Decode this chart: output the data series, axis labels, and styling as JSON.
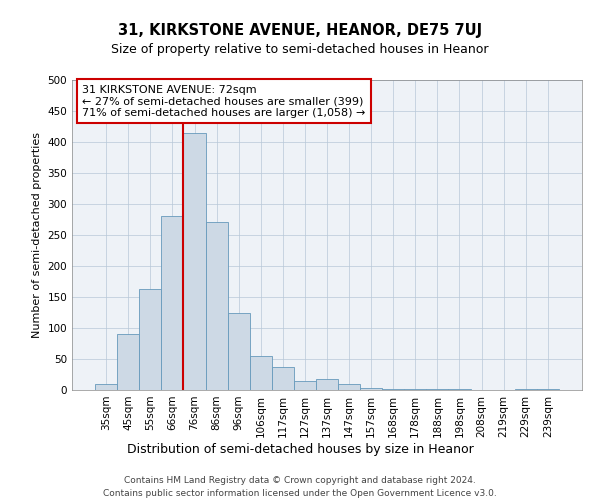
{
  "title": "31, KIRKSTONE AVENUE, HEANOR, DE75 7UJ",
  "subtitle": "Size of property relative to semi-detached houses in Heanor",
  "xlabel": "Distribution of semi-detached houses by size in Heanor",
  "ylabel": "Number of semi-detached properties",
  "footer_line1": "Contains HM Land Registry data © Crown copyright and database right 2024.",
  "footer_line2": "Contains public sector information licensed under the Open Government Licence v3.0.",
  "annotation_line1": "31 KIRKSTONE AVENUE: 72sqm",
  "annotation_line2": "← 27% of semi-detached houses are smaller (399)",
  "annotation_line3": "71% of semi-detached houses are larger (1,058) →",
  "bar_color": "#cdd9e5",
  "bar_edge_color": "#6699bb",
  "vline_color": "#cc0000",
  "categories": [
    "35sqm",
    "45sqm",
    "55sqm",
    "66sqm",
    "76sqm",
    "86sqm",
    "96sqm",
    "106sqm",
    "117sqm",
    "127sqm",
    "137sqm",
    "147sqm",
    "157sqm",
    "168sqm",
    "178sqm",
    "188sqm",
    "198sqm",
    "208sqm",
    "219sqm",
    "229sqm",
    "239sqm"
  ],
  "values": [
    10,
    90,
    163,
    281,
    414,
    271,
    125,
    55,
    37,
    15,
    17,
    10,
    4,
    2,
    2,
    1,
    1,
    0,
    0,
    1,
    1
  ],
  "ylim": [
    0,
    500
  ],
  "yticks": [
    0,
    50,
    100,
    150,
    200,
    250,
    300,
    350,
    400,
    450,
    500
  ],
  "vline_x_index": 3.5,
  "background_color": "#eef2f7",
  "grid_color": "#b8c8d8",
  "title_fontsize": 10.5,
  "subtitle_fontsize": 9,
  "xlabel_fontsize": 9,
  "ylabel_fontsize": 8,
  "annotation_fontsize": 8,
  "tick_fontsize": 7.5,
  "footer_fontsize": 6.5
}
